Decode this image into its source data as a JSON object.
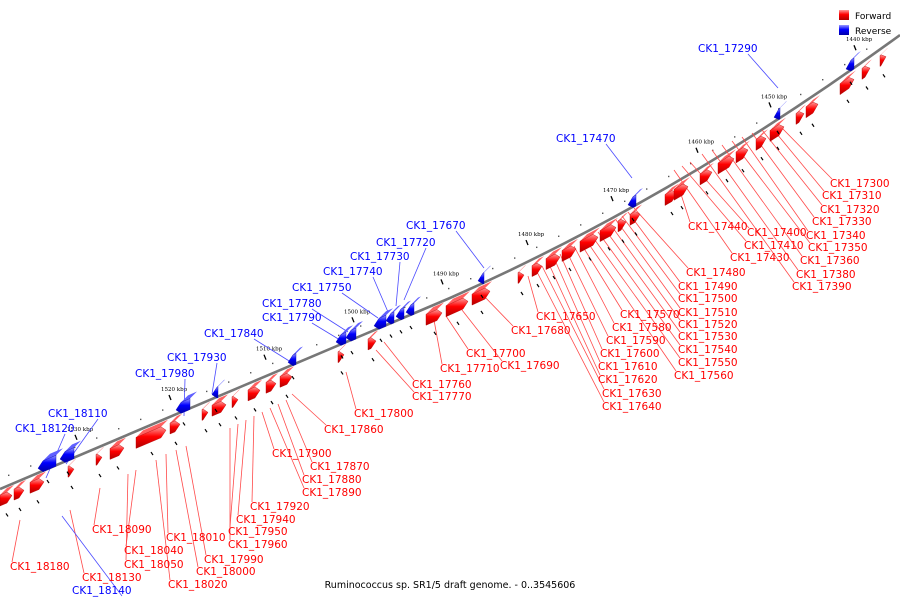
{
  "caption": "Ruminococcus sp. SR1/5 draft genome. - 0..3545606",
  "legend": {
    "forward": "Forward",
    "reverse": "Reverse"
  },
  "colors": {
    "forward": "#ff0000",
    "reverse": "#0000ff",
    "axis": "#777777",
    "forward_line": "#ff4a4a",
    "reverse_line": "#4a4aff"
  },
  "axis_ticks": [
    "1440 kbp",
    "1450 kbp",
    "1460 kbp",
    "1470 kbp",
    "1480 kbp",
    "1490 kbp",
    "1500 kbp",
    "1510 kbp",
    "1520 kbp",
    "1530 kbp"
  ],
  "forward_labels": [
    "CK1_17300",
    "CK1_17310",
    "CK1_17320",
    "CK1_17330",
    "CK1_17340",
    "CK1_17350",
    "CK1_17360",
    "CK1_17380",
    "CK1_17390",
    "CK1_17400",
    "CK1_17410",
    "CK1_17430",
    "CK1_17440",
    "CK1_17480",
    "CK1_17490",
    "CK1_17500",
    "CK1_17510",
    "CK1_17520",
    "CK1_17530",
    "CK1_17540",
    "CK1_17550",
    "CK1_17560",
    "CK1_17570",
    "CK1_17580",
    "CK1_17590",
    "CK1_17600",
    "CK1_17610",
    "CK1_17620",
    "CK1_17630",
    "CK1_17640",
    "CK1_17650",
    "CK1_17680",
    "CK1_17690",
    "CK1_17700",
    "CK1_17710",
    "CK1_17760",
    "CK1_17770",
    "CK1_17800",
    "CK1_17860",
    "CK1_17870",
    "CK1_17880",
    "CK1_17890",
    "CK1_17900",
    "CK1_17920",
    "CK1_17940",
    "CK1_17950",
    "CK1_17960",
    "CK1_17990",
    "CK1_18000",
    "CK1_18010",
    "CK1_18020",
    "CK1_18040",
    "CK1_18050",
    "CK1_18090",
    "CK1_18130",
    "CK1_18180"
  ],
  "reverse_labels": [
    "CK1_17290",
    "CK1_17470",
    "CK1_17670",
    "CK1_17720",
    "CK1_17730",
    "CK1_17740",
    "CK1_17750",
    "CK1_17780",
    "CK1_17790",
    "CK1_17840",
    "CK1_17930",
    "CK1_17980",
    "CK1_18110",
    "CK1_18120",
    "CK1_18140"
  ]
}
